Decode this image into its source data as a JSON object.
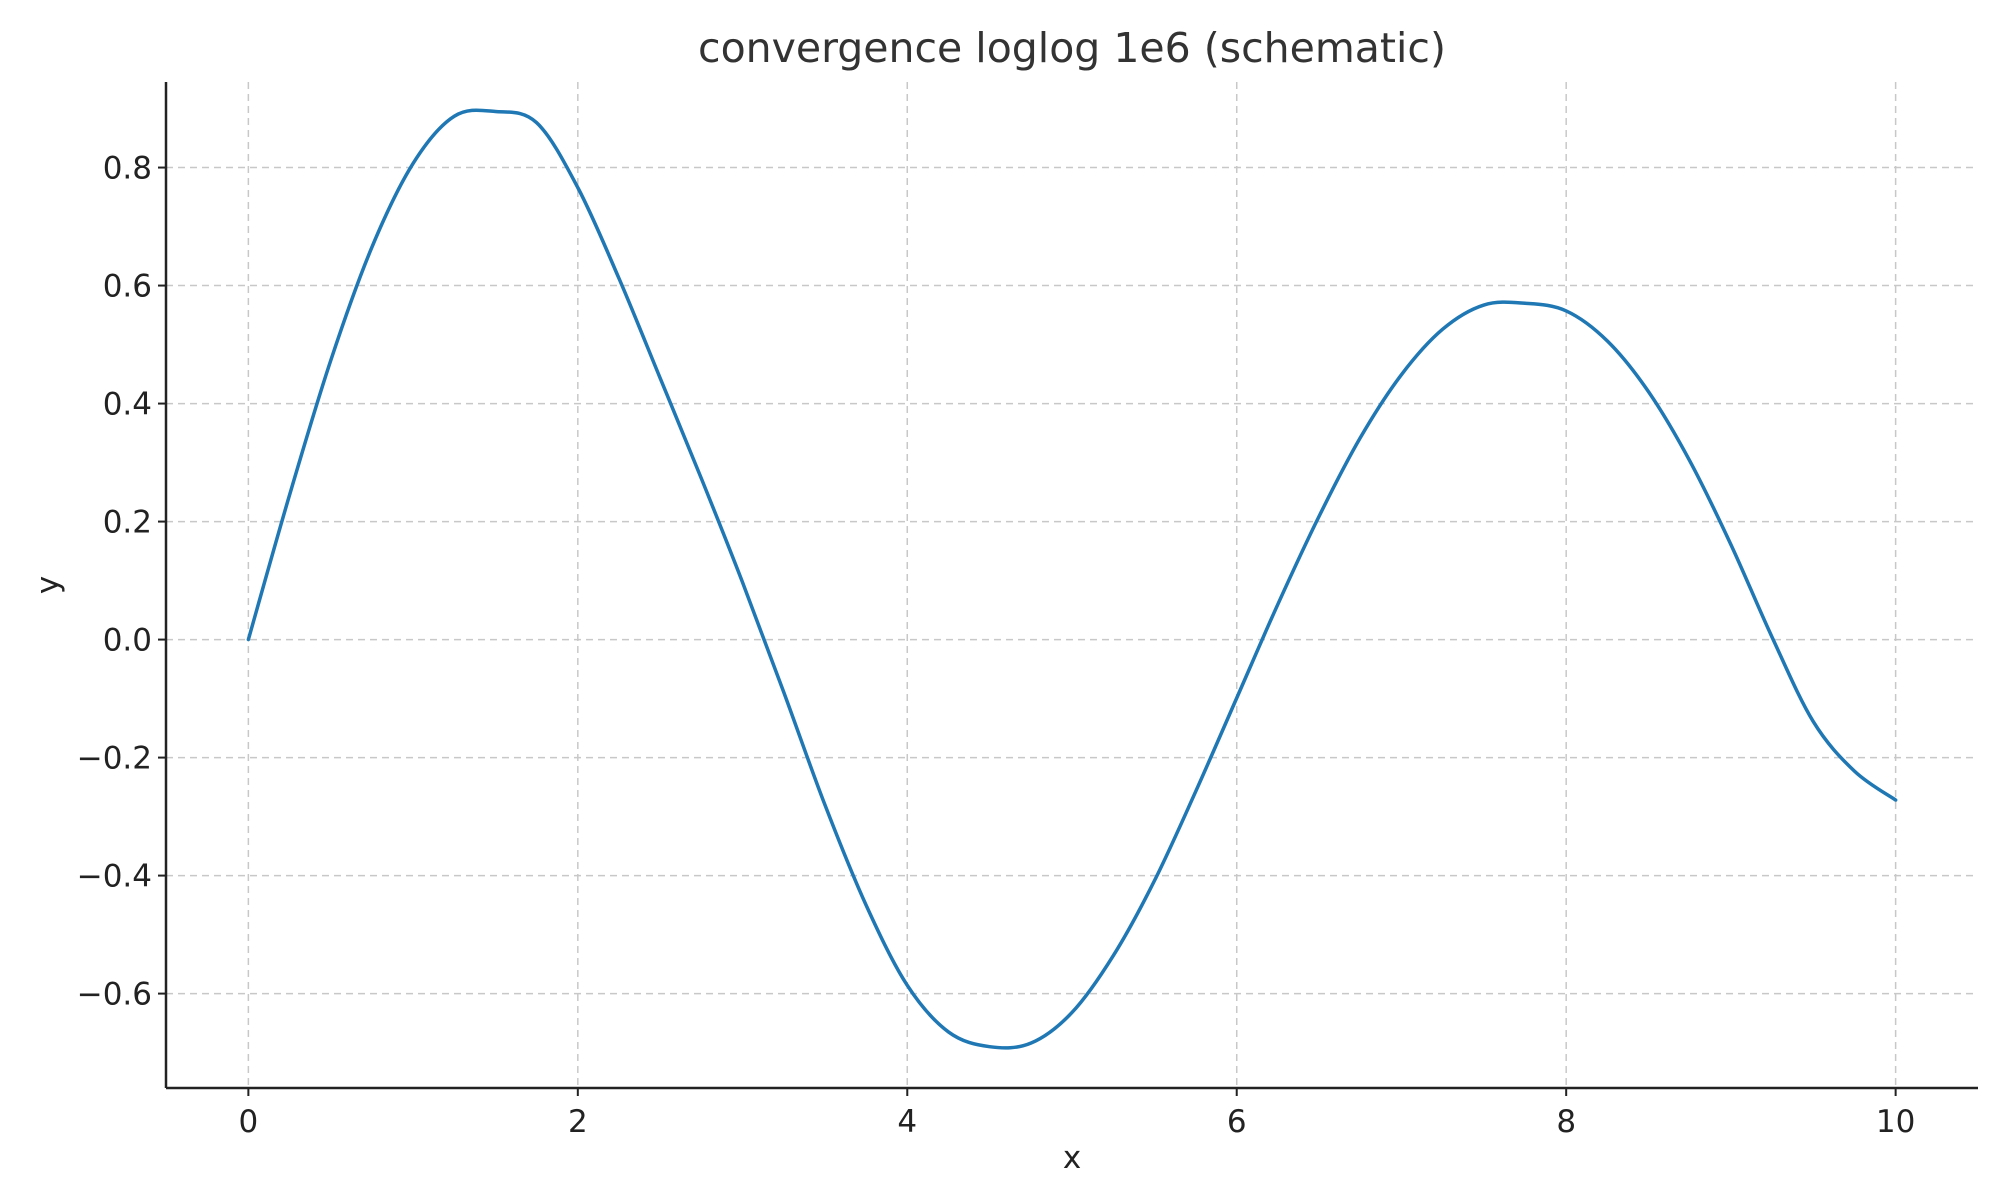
{
  "chart_data": {
    "type": "line",
    "title": "convergence loglog 1e6 (schematic)",
    "xlabel": "x",
    "ylabel": "y",
    "xlim": [
      -0.5,
      10.5
    ],
    "ylim": [
      -0.76,
      0.945
    ],
    "x_ticks": [
      0,
      2,
      4,
      6,
      8,
      10
    ],
    "x_tick_labels": [
      "0",
      "2",
      "4",
      "6",
      "8",
      "10"
    ],
    "y_ticks": [
      -0.6,
      -0.4,
      -0.2,
      0.0,
      0.2,
      0.4,
      0.6,
      0.8
    ],
    "y_tick_labels": [
      "−0.6",
      "−0.4",
      "−0.2",
      "0.0",
      "0.2",
      "0.4",
      "0.6",
      "0.8"
    ],
    "grid": true,
    "series": [
      {
        "color": "#1f77b4",
        "x": [
          0,
          0.25,
          0.5,
          0.75,
          1.0,
          1.25,
          1.5,
          1.75,
          2.0,
          2.25,
          2.5,
          2.75,
          3.0,
          3.25,
          3.5,
          3.75,
          4.0,
          4.25,
          4.5,
          4.75,
          5.0,
          5.25,
          5.5,
          5.75,
          6.0,
          6.25,
          6.5,
          6.75,
          7.0,
          7.25,
          7.5,
          7.75,
          8.0,
          8.25,
          8.5,
          8.75,
          9.0,
          9.25,
          9.5,
          9.75,
          10.0
        ],
        "y": [
          0.0,
          0.245,
          0.473,
          0.665,
          0.807,
          0.887,
          0.895,
          0.876,
          0.766,
          0.612,
          0.443,
          0.273,
          0.097,
          -0.089,
          -0.28,
          -0.45,
          -0.586,
          -0.665,
          -0.69,
          -0.684,
          -0.632,
          -0.536,
          -0.409,
          -0.258,
          -0.099,
          0.06,
          0.209,
          0.342,
          0.449,
          0.526,
          0.567,
          0.57,
          0.557,
          0.506,
          0.42,
          0.303,
          0.161,
          0.004,
          -0.139,
          -0.223,
          -0.272
        ]
      }
    ]
  }
}
